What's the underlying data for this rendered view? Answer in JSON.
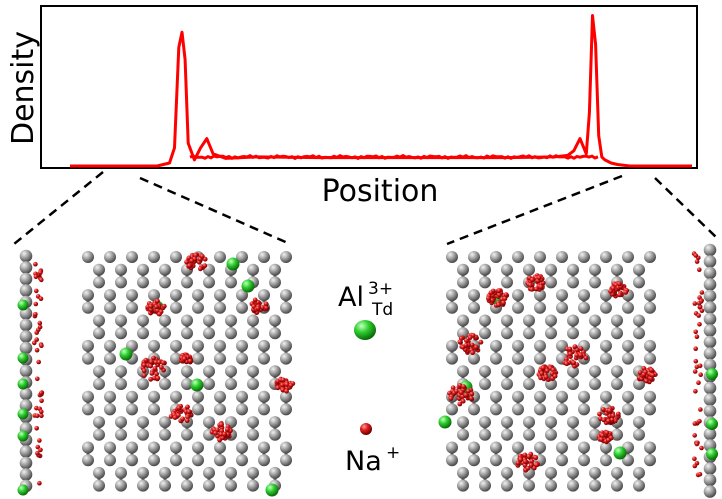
{
  "plot": {
    "ylabel": "Density",
    "xlabel": "Position",
    "line_color": "#ff0000"
  },
  "chart_data": {
    "type": "line",
    "xlabel": "Position",
    "ylabel": "Density",
    "grid": false,
    "series": [
      {
        "x": [
          0.0,
          0.05,
          0.1,
          0.14,
          0.16,
          0.168,
          0.175,
          0.18,
          0.185,
          0.19,
          0.2,
          0.21,
          0.22,
          0.23,
          0.25,
          0.3,
          0.4,
          0.5,
          0.6,
          0.7,
          0.78,
          0.8,
          0.81,
          0.82,
          0.83,
          0.835,
          0.84,
          0.845,
          0.85,
          0.855,
          0.86,
          0.87,
          0.88,
          0.9,
          0.95,
          1.0
        ],
        "values": [
          0.0,
          0.0,
          0.0,
          0.0,
          0.02,
          0.12,
          0.78,
          0.88,
          0.7,
          0.15,
          0.04,
          0.12,
          0.18,
          0.08,
          0.05,
          0.06,
          0.055,
          0.055,
          0.055,
          0.055,
          0.06,
          0.07,
          0.1,
          0.18,
          0.08,
          0.35,
          0.99,
          0.8,
          0.2,
          0.06,
          0.04,
          0.02,
          0.01,
          0.0,
          0.0,
          0.0
        ]
      }
    ]
  },
  "legend": {
    "al_label": "Al",
    "al_charge": "3+",
    "al_site": "Td",
    "al_color": "#22cc22",
    "na_label": "Na",
    "na_charge": "+",
    "na_color": "#cc1111"
  },
  "colors": {
    "framework_atom": "#8c8c8c",
    "cluster": "#dd1b1b",
    "aluminum": "#2fd02f"
  }
}
